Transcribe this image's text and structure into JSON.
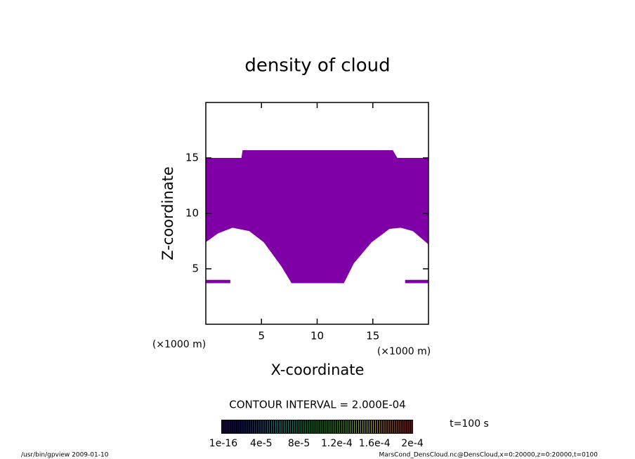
{
  "chart_data": {
    "type": "filled-contour",
    "title": "density of cloud",
    "x_label": "X-coordinate",
    "y_label": "Z-coordinate",
    "x_unit_labels": [
      "(×1000 m)",
      "(×1000 m)"
    ],
    "xlim": [
      0,
      20
    ],
    "ylim": [
      0,
      20
    ],
    "xticks": [
      5,
      10,
      15
    ],
    "yticks": [
      5,
      10,
      15
    ],
    "color": "#8000a8",
    "regions": [
      {
        "x": [
          0,
          3.2,
          3.3,
          16.8,
          17.2,
          20,
          20,
          18.6,
          17.5,
          16.5,
          14.9,
          13.3,
          12.4,
          7.7,
          6.8,
          5.2,
          3.9,
          2.4,
          1.1,
          0
        ],
        "z": [
          15,
          15,
          15.7,
          15.7,
          15,
          15,
          7.2,
          8.4,
          8.7,
          8.6,
          7.4,
          5.5,
          3.7,
          3.7,
          5.2,
          7.4,
          8.4,
          8.7,
          8.2,
          7.4
        ]
      },
      {
        "x": [
          0,
          2.2,
          2.2,
          0
        ],
        "z": [
          4.0,
          4.0,
          3.7,
          3.7
        ]
      },
      {
        "x": [
          17.9,
          20,
          20,
          17.9
        ],
        "z": [
          4.0,
          4.0,
          3.7,
          3.7
        ]
      }
    ],
    "contour_interval": "CONTOUR INTERVAL = 2.000E-04",
    "time_label": "t=100 s",
    "clim": [
      0,
      0.0002
    ],
    "colorbar_ticks": [
      {
        "value": 1e-16,
        "label": "1e-16"
      },
      {
        "value": 4e-05,
        "label": "4e-5"
      },
      {
        "value": 8e-05,
        "label": "8e-5"
      },
      {
        "value": 0.00012,
        "label": "1.2e-4"
      },
      {
        "value": 0.00016,
        "label": "1.6e-4"
      },
      {
        "value": 0.0002,
        "label": "2e-4"
      }
    ],
    "footer_left": "/usr/bin/gpview  2009-01-10",
    "footer_right": "MarsCond_DensCloud.nc@DensCloud,x=0:20000,z=0:20000,t=0100"
  }
}
